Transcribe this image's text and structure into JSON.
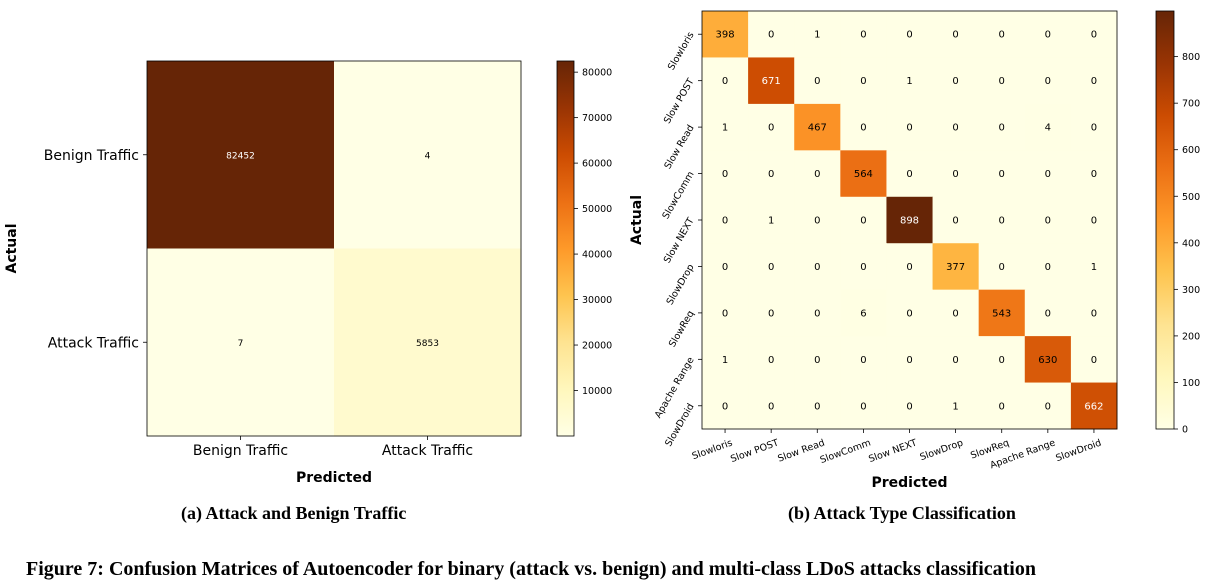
{
  "chart_data": [
    {
      "type": "heatmap",
      "title": "",
      "caption": "(a) Attack and Benign Traffic",
      "xlabel": "Predicted",
      "ylabel": "Actual",
      "x_categories": [
        "Benign Traffic",
        "Attack Traffic"
      ],
      "y_categories": [
        "Benign Traffic",
        "Attack Traffic"
      ],
      "matrix": [
        [
          82452,
          4
        ],
        [
          7,
          5853
        ]
      ],
      "colormap": "YlOrBr",
      "colorbar": {
        "min": 0,
        "max": 82452,
        "ticks": [
          "10000",
          "20000",
          "30000",
          "40000",
          "50000",
          "60000",
          "70000",
          "80000"
        ],
        "tick_values": [
          10000,
          20000,
          30000,
          40000,
          50000,
          60000,
          70000,
          80000
        ]
      }
    },
    {
      "type": "heatmap",
      "title": "",
      "caption": "(b) Attack Type Classification",
      "xlabel": "Predicted",
      "ylabel": "Actual",
      "x_categories": [
        "Slowloris",
        "Slow POST",
        "Slow Read",
        "SlowComm",
        "Slow NEXT",
        "SlowDrop",
        "SlowReq",
        "Apache Range",
        "SlowDroid"
      ],
      "y_categories": [
        "Slowloris",
        "Slow POST",
        "Slow Read",
        "SlowComm",
        "Slow NEXT",
        "SlowDrop",
        "SlowReq",
        "Apache Range",
        "SlowDroid"
      ],
      "matrix": [
        [
          398,
          0,
          1,
          0,
          0,
          0,
          0,
          0,
          0
        ],
        [
          0,
          671,
          0,
          0,
          1,
          0,
          0,
          0,
          0
        ],
        [
          1,
          0,
          467,
          0,
          0,
          0,
          0,
          4,
          0
        ],
        [
          0,
          0,
          0,
          564,
          0,
          0,
          0,
          0,
          0
        ],
        [
          0,
          1,
          0,
          0,
          898,
          0,
          0,
          0,
          0
        ],
        [
          0,
          0,
          0,
          0,
          0,
          377,
          0,
          0,
          1
        ],
        [
          0,
          0,
          0,
          6,
          0,
          0,
          543,
          0,
          0
        ],
        [
          1,
          0,
          0,
          0,
          0,
          0,
          0,
          630,
          0
        ],
        [
          0,
          0,
          0,
          0,
          0,
          1,
          0,
          0,
          662
        ]
      ],
      "colormap": "YlOrBr",
      "colorbar": {
        "min": 0,
        "max": 898,
        "ticks": [
          "0",
          "100",
          "200",
          "300",
          "400",
          "500",
          "600",
          "700",
          "800"
        ],
        "tick_values": [
          0,
          100,
          200,
          300,
          400,
          500,
          600,
          700,
          800
        ]
      }
    }
  ],
  "figure_caption": "Figure 7: Confusion Matrices of Autoencoder for binary (attack vs. benign) and multi-class LDoS attacks classification"
}
